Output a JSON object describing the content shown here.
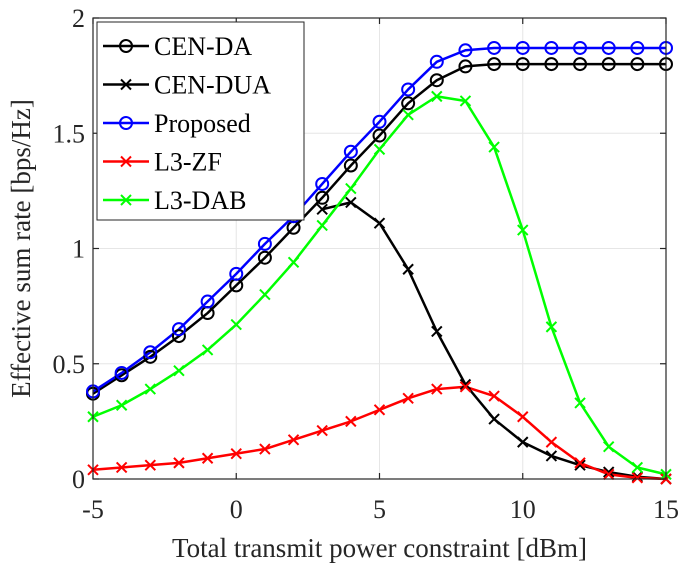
{
  "chart_data": {
    "type": "line",
    "xlabel": "Total transmit power constraint [dBm]",
    "ylabel": "Effective sum rate [bps/Hz]",
    "xlim": [
      -5,
      15
    ],
    "ylim": [
      0,
      2
    ],
    "xticks": [
      -5,
      0,
      5,
      10,
      15
    ],
    "yticks": [
      0,
      0.5,
      1,
      1.5,
      2
    ],
    "xtick_labels": [
      "-5",
      "0",
      "5",
      "10",
      "15"
    ],
    "ytick_labels": [
      "0",
      "0.5",
      "1",
      "1.5",
      "2"
    ],
    "grid": true,
    "legend_position": "top-left",
    "x": [
      -5,
      -4,
      -3,
      -2,
      -1,
      0,
      1,
      2,
      3,
      4,
      5,
      6,
      7,
      8,
      9,
      10,
      11,
      12,
      13,
      14,
      15
    ],
    "series": [
      {
        "name": "CEN-DA",
        "color": "#000000",
        "marker": "circle",
        "values": [
          0.37,
          0.45,
          0.53,
          0.62,
          0.72,
          0.84,
          0.96,
          1.09,
          1.22,
          1.36,
          1.49,
          1.63,
          1.73,
          1.79,
          1.8,
          1.8,
          1.8,
          1.8,
          1.8,
          1.8,
          1.8
        ]
      },
      {
        "name": "CEN-DUA",
        "color": "#000000",
        "marker": "x",
        "values": [
          null,
          null,
          null,
          null,
          null,
          null,
          null,
          null,
          1.17,
          1.2,
          1.11,
          0.91,
          0.64,
          0.41,
          0.26,
          0.16,
          0.1,
          0.06,
          0.03,
          0.01,
          0.0
        ]
      },
      {
        "name": "Proposed",
        "color": "#0000ff",
        "marker": "circle",
        "values": [
          0.38,
          0.46,
          0.55,
          0.65,
          0.77,
          0.89,
          1.02,
          1.14,
          1.28,
          1.42,
          1.55,
          1.69,
          1.81,
          1.86,
          1.87,
          1.87,
          1.87,
          1.87,
          1.87,
          1.87,
          1.87
        ]
      },
      {
        "name": "L3-ZF",
        "color": "#ff0000",
        "marker": "x",
        "values": [
          0.04,
          0.05,
          0.06,
          0.07,
          0.09,
          0.11,
          0.13,
          0.17,
          0.21,
          0.25,
          0.3,
          0.35,
          0.39,
          0.4,
          0.36,
          0.27,
          0.16,
          0.07,
          0.02,
          0.005,
          0.0
        ]
      },
      {
        "name": "L3-DAB",
        "color": "#00ff00",
        "marker": "x",
        "values": [
          0.27,
          0.32,
          0.39,
          0.47,
          0.56,
          0.67,
          0.8,
          0.94,
          1.1,
          1.26,
          1.43,
          1.58,
          1.66,
          1.64,
          1.44,
          1.08,
          0.66,
          0.33,
          0.14,
          0.05,
          0.02
        ]
      }
    ]
  }
}
